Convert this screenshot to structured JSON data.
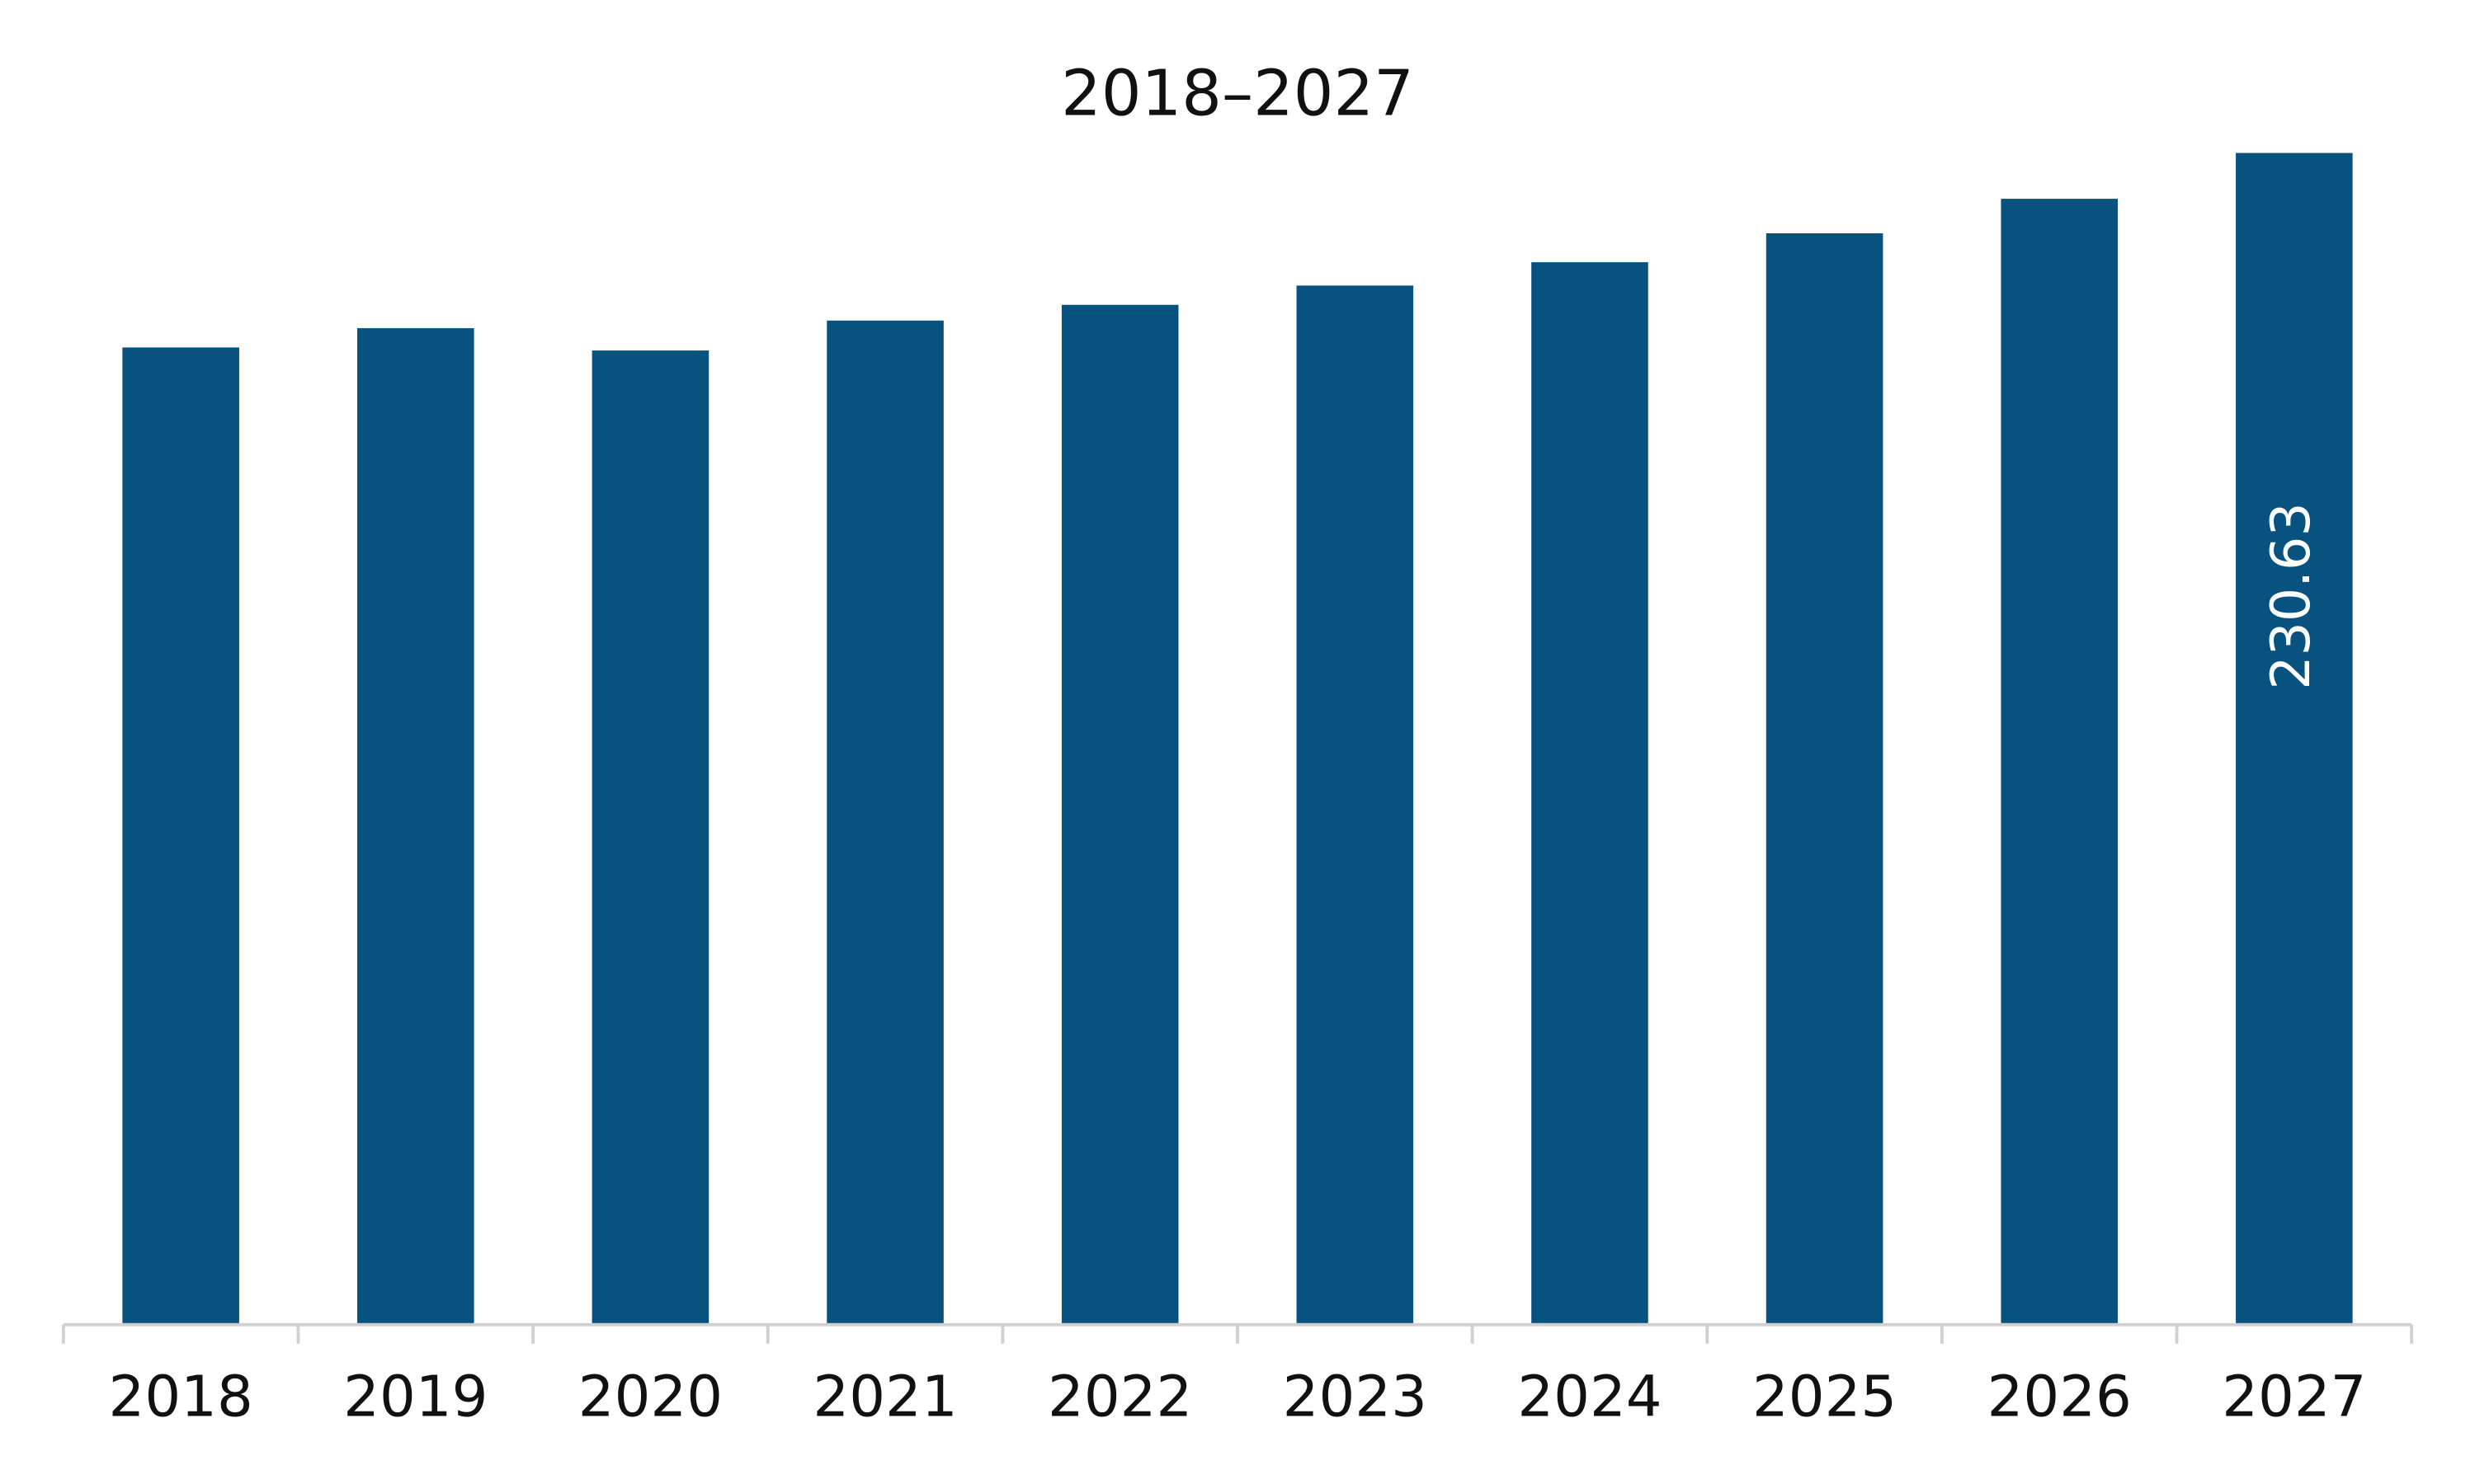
{
  "chart_data": {
    "type": "bar",
    "title": "2018–2027",
    "categories": [
      "2018",
      "2019",
      "2020",
      "2021",
      "2022",
      "2023",
      "2024",
      "2025",
      "2026",
      "2027"
    ],
    "values": [
      192.3,
      196.1,
      191.7,
      197.6,
      200.7,
      204.5,
      209.1,
      214.8,
      221.6,
      230.63
    ],
    "value_labels": [
      null,
      null,
      null,
      null,
      null,
      null,
      null,
      null,
      null,
      "230.63"
    ],
    "color": "#08527f"
  }
}
